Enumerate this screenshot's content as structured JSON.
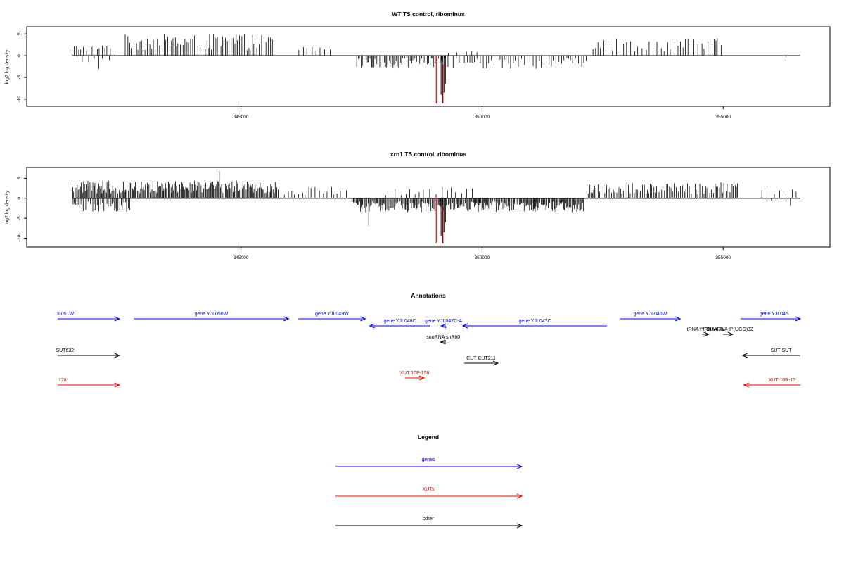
{
  "chart_data": [
    {
      "type": "bar",
      "title": "WT TS control, ribominus",
      "xlabel": "",
      "ylabel": "log2 log density",
      "xlim": [
        341200,
        356600
      ],
      "ylim": [
        -11,
        6
      ],
      "xticks": [
        345000,
        350000,
        355000
      ],
      "xtick_labels": [
        "345000",
        "350000",
        "355000"
      ],
      "yticks": [
        5,
        0,
        -5,
        -10
      ],
      "ytick_labels": [
        "5",
        "0",
        "-5",
        "-10"
      ],
      "series": [
        {
          "color": "#000000",
          "clusters": [
            {
              "start": 341500,
              "end": 342400,
              "min": 1,
              "max": 2.5,
              "sign": 1,
              "step": 55
            },
            {
              "start": 341600,
              "end": 342300,
              "min": 0.5,
              "max": 2,
              "sign": -1,
              "step": 130
            },
            {
              "start": 342600,
              "end": 345700,
              "min": 1.2,
              "max": 5,
              "sign": 1,
              "step": 40
            },
            {
              "start": 346200,
              "end": 346900,
              "min": 1,
              "max": 2.3,
              "sign": 1,
              "step": 90
            },
            {
              "start": 347400,
              "end": 349300,
              "min": 0.5,
              "max": 2.8,
              "sign": -1,
              "step": 30
            },
            {
              "start": 349400,
              "end": 352200,
              "min": 0.5,
              "max": 3,
              "sign": -1,
              "step": 50
            },
            {
              "start": 349300,
              "end": 349900,
              "min": 0.5,
              "max": 1.8,
              "sign": 1,
              "step": 150
            },
            {
              "start": 352300,
              "end": 355000,
              "min": 1,
              "max": 4,
              "sign": 1,
              "step": 65
            }
          ],
          "points": [
            {
              "x": 342050,
              "y": -3
            },
            {
              "x": 344350,
              "y": 5
            },
            {
              "x": 344900,
              "y": 4.8
            },
            {
              "x": 354850,
              "y": 3.5
            },
            {
              "x": 356300,
              "y": -1.2
            },
            {
              "x": 349150,
              "y": -9
            },
            {
              "x": 349180,
              "y": -11
            },
            {
              "x": 349210,
              "y": -8.5
            },
            {
              "x": 349240,
              "y": -6.5
            }
          ]
        }
      ],
      "highlight": {
        "x": 349050,
        "y": -11,
        "color": "#ff0000"
      }
    },
    {
      "type": "bar",
      "title": "xrn1 TS control, ribominus",
      "xlabel": "",
      "ylabel": "log2 log density",
      "xlim": [
        341200,
        356600
      ],
      "ylim": [
        -11.5,
        7
      ],
      "xticks": [
        345000,
        350000,
        355000
      ],
      "xtick_labels": [
        "345000",
        "350000",
        "355000"
      ],
      "yticks": [
        5,
        0,
        -5,
        -10
      ],
      "ytick_labels": [
        "5",
        "0",
        "-5",
        "-10"
      ],
      "series": [
        {
          "color": "#000000",
          "clusters": [
            {
              "start": 341500,
              "end": 345800,
              "min": 1.2,
              "max": 4.5,
              "sign": 1,
              "step": 20
            },
            {
              "start": 341500,
              "end": 342700,
              "min": 0.8,
              "max": 3.5,
              "sign": -1,
              "step": 28
            },
            {
              "start": 345900,
              "end": 347200,
              "min": 0.8,
              "max": 3,
              "sign": 1,
              "step": 70
            },
            {
              "start": 347300,
              "end": 352100,
              "min": 0.8,
              "max": 3.5,
              "sign": -1,
              "step": 20
            },
            {
              "start": 348000,
              "end": 349800,
              "min": 0.8,
              "max": 2.8,
              "sign": 1,
              "step": 100
            },
            {
              "start": 352200,
              "end": 355300,
              "min": 1,
              "max": 4,
              "sign": 1,
              "step": 35
            },
            {
              "start": 355800,
              "end": 356600,
              "min": 1,
              "max": 2.2,
              "sign": 1,
              "step": 110
            },
            {
              "start": 356000,
              "end": 356500,
              "min": 0.5,
              "max": 2,
              "sign": -1,
              "step": 160
            }
          ],
          "points": [
            {
              "x": 344550,
              "y": 6.8
            },
            {
              "x": 347650,
              "y": -6.8
            },
            {
              "x": 349150,
              "y": -9.5
            },
            {
              "x": 349180,
              "y": -11.3
            },
            {
              "x": 349210,
              "y": -8.5
            },
            {
              "x": 349240,
              "y": -6
            }
          ]
        }
      ],
      "highlight": {
        "x": 349050,
        "y": -11.3,
        "color": "#ff0000"
      }
    }
  ],
  "annotations": {
    "title": "Annotations",
    "xlim": [
      341200,
      356600
    ],
    "features": [
      {
        "label": "JL051W",
        "start": 341200,
        "end": 342480,
        "strand": "+",
        "row": 0,
        "color": "#0000ff",
        "label_x": 341350
      },
      {
        "label": "gene YJL050W",
        "start": 342780,
        "end": 345990,
        "strand": "+",
        "row": 0,
        "color": "#0000ff"
      },
      {
        "label": "gene YJL049W",
        "start": 346190,
        "end": 347580,
        "strand": "+",
        "row": 0,
        "color": "#0000ff"
      },
      {
        "label": "gene YJL048C",
        "start": 347670,
        "end": 348920,
        "strand": "-",
        "row": 1,
        "color": "#0000ff"
      },
      {
        "label": "gene YJL047C-A",
        "start": 349150,
        "end": 349250,
        "strand": "-",
        "row": 1,
        "color": "#0000ff"
      },
      {
        "label": "gene YJL047C",
        "start": 349600,
        "end": 352590,
        "strand": "-",
        "row": 1,
        "color": "#0000ff"
      },
      {
        "label": "gene YJL046W",
        "start": 352860,
        "end": 354110,
        "strand": "+",
        "row": 0,
        "color": "#0000ff"
      },
      {
        "label": "gene YJL045",
        "start": 355360,
        "end": 356600,
        "strand": "+",
        "row": 0,
        "color": "#0000ff",
        "label_x": 356050
      },
      {
        "label": "tRNA tY(GUA)J1",
        "start": 354560,
        "end": 354700,
        "strand": "+",
        "row": 2,
        "color": "#000000"
      },
      {
        "label": "tRNA tRNA tP(UGG)J2",
        "start": 355000,
        "end": 355200,
        "strand": "+",
        "row": 2,
        "color": "#000000"
      },
      {
        "label": "snoRNA snR60",
        "start": 349140,
        "end": 349250,
        "strand": "-",
        "row": 3,
        "color": "#000000"
      },
      {
        "label": "SUT632",
        "start": 341200,
        "end": 342480,
        "strand": "+",
        "row": 4,
        "color": "#000000",
        "label_x": 341350
      },
      {
        "label": "CUT CUT211",
        "start": 349630,
        "end": 350330,
        "strand": "+",
        "row": 5,
        "color": "#000000"
      },
      {
        "label": "SUT SUT",
        "start": 355400,
        "end": 356600,
        "strand": "-",
        "row": 4,
        "color": "#000000",
        "label_x": 356200
      },
      {
        "label": "128",
        "start": 341200,
        "end": 342480,
        "strand": "+",
        "row": 6,
        "color": "#ff0000",
        "label_x": 341300
      },
      {
        "label": "XUT 10F-158",
        "start": 348400,
        "end": 348800,
        "strand": "+",
        "row": 7,
        "color": "#ff0000"
      },
      {
        "label": "XUT 10R-13",
        "start": 355430,
        "end": 356600,
        "strand": "-",
        "row": 6,
        "color": "#ff0000",
        "label_x": 356220
      }
    ]
  },
  "legend": {
    "title": "Legend",
    "items": [
      {
        "label": "genes",
        "color": "#0000ff"
      },
      {
        "label": "XUTs",
        "color": "#ff0000"
      },
      {
        "label": "other",
        "color": "#000000"
      }
    ]
  }
}
